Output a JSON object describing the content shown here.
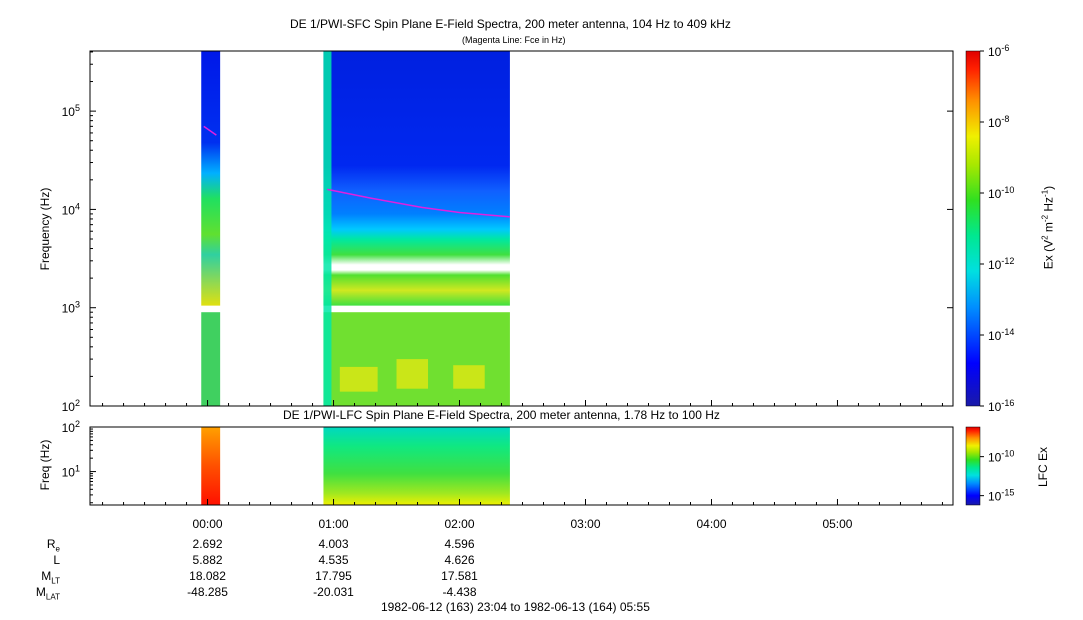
{
  "chart_data": [
    {
      "type": "heatmap",
      "title": "DE 1/PWI-SFC  Spin Plane E-Field Spectra, 200 meter antenna, 104 Hz to 409 kHz",
      "subtitle": "(Magenta Line: Fce in Hz)",
      "ylabel": "Frequency (Hz)",
      "y_scale": "log",
      "ylim": [
        100,
        409000
      ],
      "y_ticks": [
        {
          "value": 100,
          "label": "10",
          "exp": "2"
        },
        {
          "value": 1000,
          "label": "10",
          "exp": "3"
        },
        {
          "value": 10000,
          "label": "10",
          "exp": "4"
        },
        {
          "value": 100000,
          "label": "10",
          "exp": "5"
        }
      ],
      "x_range_hours": [
        -0.933,
        5.917
      ],
      "data_segments_hours": [
        [
          -0.05,
          0.1
        ],
        [
          0.92,
          2.4
        ]
      ],
      "fce_line": [
        {
          "segment": 0,
          "points": [
            [
              -0.03,
              70000
            ],
            [
              0.07,
              57000
            ]
          ]
        },
        {
          "segment": 1,
          "points": [
            [
              0.95,
              16000
            ],
            [
              1.3,
              13000
            ],
            [
              1.7,
              10500
            ],
            [
              2.0,
              9300
            ],
            [
              2.4,
              8400
            ]
          ]
        }
      ],
      "colorbar": {
        "label_main": "Ex (V",
        "label_sup1": "2",
        "label_mid": " m",
        "label_sup2": "-2",
        "label_mid2": " Hz",
        "label_sup3": "-1",
        "label_end": ")",
        "range": [
          1e-16,
          1e-06
        ],
        "scale": "log",
        "ticks": [
          {
            "label": "10",
            "exp": "-6"
          },
          {
            "label": "10",
            "exp": "-8"
          },
          {
            "label": "10",
            "exp": "-10"
          },
          {
            "label": "10",
            "exp": "-12"
          },
          {
            "label": "10",
            "exp": "-14"
          },
          {
            "label": "10",
            "exp": "-16"
          }
        ]
      }
    },
    {
      "type": "heatmap",
      "title": "DE 1/PWI-LFC  Spin Plane E-Field Spectra, 200 meter antenna, 1.78 Hz to 100 Hz",
      "ylabel": "Freq (Hz)",
      "y_scale": "log",
      "ylim": [
        1.78,
        100
      ],
      "y_ticks": [
        {
          "value": 100,
          "label": "10",
          "exp": "2"
        },
        {
          "value": 10,
          "label": "10",
          "exp": "1"
        }
      ],
      "data_segments_hours": [
        [
          -0.05,
          0.1
        ],
        [
          0.92,
          2.4
        ]
      ],
      "colorbar": {
        "label": "LFC Ex",
        "scale": "log",
        "ticks": [
          {
            "label": "10",
            "exp": "-10"
          },
          {
            "label": "10",
            "exp": "-15"
          }
        ]
      }
    }
  ],
  "x_axis": {
    "tick_labels": [
      "00:00",
      "01:00",
      "02:00",
      "03:00",
      "04:00",
      "05:00"
    ]
  },
  "ephemeris": {
    "rows": [
      {
        "label": "R",
        "sub": "e",
        "values": [
          "2.692",
          "4.003",
          "4.596"
        ]
      },
      {
        "label": "L",
        "sub": "",
        "values": [
          "5.882",
          "4.535",
          "4.626"
        ]
      },
      {
        "label": "M",
        "sub": "LT",
        "values": [
          "18.082",
          "17.795",
          "17.581"
        ]
      },
      {
        "label": "M",
        "sub": "LAT",
        "values": [
          "-48.285",
          "-20.031",
          "-4.438"
        ]
      }
    ]
  },
  "time_range": "1982-06-12 (163) 23:04 to 1982-06-13 (164) 05:55"
}
